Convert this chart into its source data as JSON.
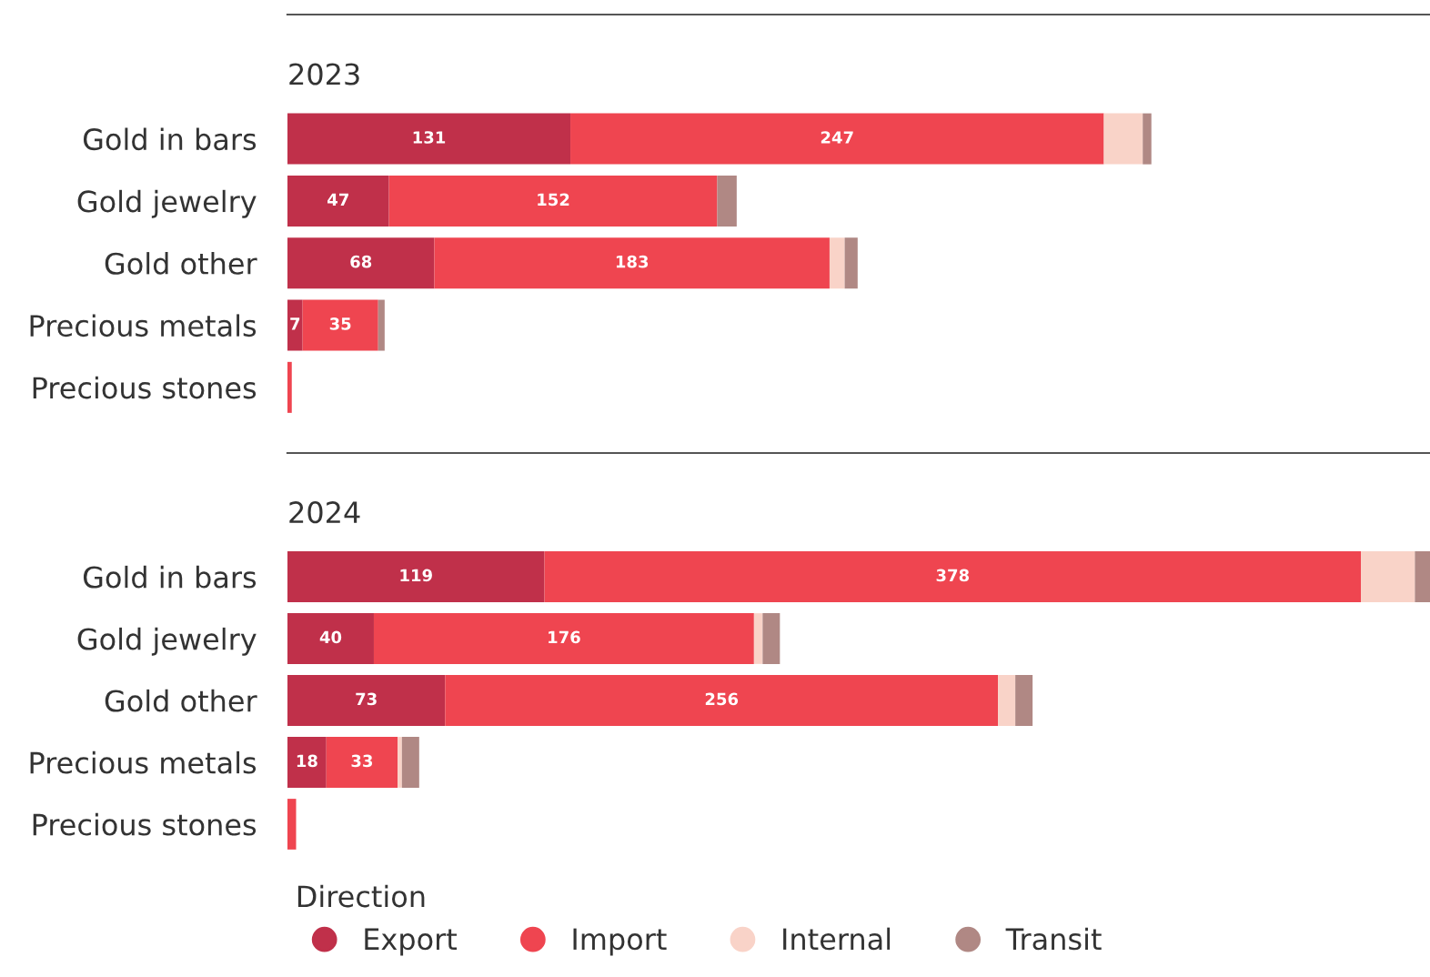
{
  "chart_data": [
    {
      "type": "bar",
      "orientation": "horizontal",
      "stacked": true,
      "title": "2023",
      "tick_labels": "y",
      "grid": false,
      "legend": "bottom",
      "legend_title": "Direction",
      "categories": [
        "Gold in bars",
        "Gold jewelry",
        "Gold other",
        "Precious metals",
        "Precious stones"
      ],
      "series": [
        {
          "name": "Export",
          "color": "#c0304a",
          "values": [
            131,
            47,
            68,
            7,
            0
          ],
          "value_labels": [
            "131",
            "47",
            "68",
            "7",
            null
          ]
        },
        {
          "name": "Import",
          "color": "#ef4550",
          "values": [
            247,
            152,
            183,
            35,
            2
          ],
          "value_labels": [
            "247",
            "152",
            "183",
            "35",
            null
          ]
        },
        {
          "name": "Internal",
          "color": "#f9d3c8",
          "values": [
            18,
            null,
            7,
            null,
            0
          ]
        },
        {
          "name": "Transit",
          "color": "#b08884",
          "values": [
            4,
            9,
            6,
            3,
            0
          ]
        }
      ]
    },
    {
      "type": "bar",
      "orientation": "horizontal",
      "stacked": true,
      "title": "2024",
      "tick_labels": "y",
      "grid": false,
      "categories": [
        "Gold in bars",
        "Gold jewelry",
        "Gold other",
        "Precious metals",
        "Precious stones"
      ],
      "series": [
        {
          "color": "#c0304a",
          "values": [
            119,
            40,
            73,
            18,
            0
          ],
          "value_labels": [
            "119",
            "40",
            "73",
            "18",
            null
          ]
        },
        {
          "color": "#ef4550",
          "values": [
            378,
            176,
            256,
            33,
            4
          ],
          "value_labels": [
            "378",
            "176",
            "256",
            "33",
            null
          ]
        },
        {
          "color": "#f9d3c8",
          "values": [
            25,
            4,
            8,
            2,
            0
          ]
        },
        {
          "color": "#b08884",
          "values": [
            7,
            8,
            8,
            8,
            0
          ]
        }
      ]
    }
  ]
}
